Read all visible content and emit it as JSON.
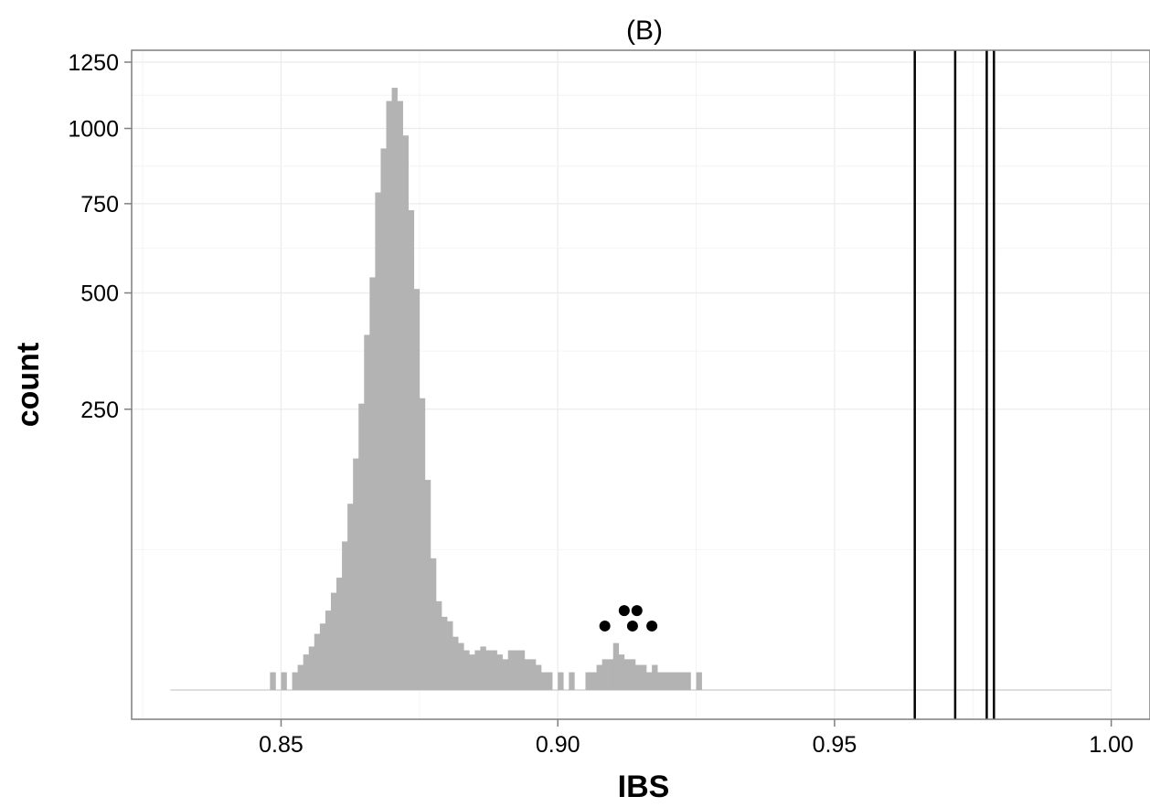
{
  "chart_data": {
    "type": "histogram",
    "title": "(B)",
    "xlabel": "IBS",
    "ylabel": "count",
    "xlim": [
      0.823,
      1.007
    ],
    "y_scale": "sqrt",
    "ylim": [
      0,
      1300
    ],
    "x_ticks": [
      0.85,
      0.9,
      0.95,
      1.0
    ],
    "x_tick_labels": [
      "0.85",
      "0.90",
      "0.95",
      "1.00"
    ],
    "y_ticks": [
      250,
      500,
      750,
      1000,
      1250
    ],
    "y_tick_labels": [
      "250",
      "500",
      "750",
      "1000",
      "1250"
    ],
    "grid": true,
    "baseline_x_range": [
      0.83,
      1.0
    ],
    "bin_width": 0.001,
    "bins": [
      {
        "x": 0.848,
        "count": 1
      },
      {
        "x": 0.85,
        "count": 1
      },
      {
        "x": 0.852,
        "count": 1
      },
      {
        "x": 0.853,
        "count": 2
      },
      {
        "x": 0.854,
        "count": 4
      },
      {
        "x": 0.855,
        "count": 6
      },
      {
        "x": 0.856,
        "count": 10
      },
      {
        "x": 0.857,
        "count": 14
      },
      {
        "x": 0.858,
        "count": 20
      },
      {
        "x": 0.859,
        "count": 30
      },
      {
        "x": 0.86,
        "count": 40
      },
      {
        "x": 0.861,
        "count": 70
      },
      {
        "x": 0.862,
        "count": 110
      },
      {
        "x": 0.863,
        "count": 170
      },
      {
        "x": 0.864,
        "count": 260
      },
      {
        "x": 0.865,
        "count": 400
      },
      {
        "x": 0.866,
        "count": 540
      },
      {
        "x": 0.867,
        "count": 785
      },
      {
        "x": 0.868,
        "count": 930
      },
      {
        "x": 0.869,
        "count": 1100
      },
      {
        "x": 0.87,
        "count": 1150
      },
      {
        "x": 0.871,
        "count": 1100
      },
      {
        "x": 0.872,
        "count": 975
      },
      {
        "x": 0.873,
        "count": 730
      },
      {
        "x": 0.874,
        "count": 510
      },
      {
        "x": 0.875,
        "count": 270
      },
      {
        "x": 0.876,
        "count": 140
      },
      {
        "x": 0.877,
        "count": 55
      },
      {
        "x": 0.878,
        "count": 25
      },
      {
        "x": 0.879,
        "count": 17
      },
      {
        "x": 0.88,
        "count": 15
      },
      {
        "x": 0.881,
        "count": 9
      },
      {
        "x": 0.882,
        "count": 7
      },
      {
        "x": 0.883,
        "count": 5
      },
      {
        "x": 0.884,
        "count": 4
      },
      {
        "x": 0.885,
        "count": 5
      },
      {
        "x": 0.886,
        "count": 6
      },
      {
        "x": 0.887,
        "count": 5
      },
      {
        "x": 0.888,
        "count": 5
      },
      {
        "x": 0.889,
        "count": 4
      },
      {
        "x": 0.89,
        "count": 3
      },
      {
        "x": 0.891,
        "count": 5
      },
      {
        "x": 0.892,
        "count": 5
      },
      {
        "x": 0.893,
        "count": 5
      },
      {
        "x": 0.894,
        "count": 3
      },
      {
        "x": 0.895,
        "count": 3
      },
      {
        "x": 0.896,
        "count": 2
      },
      {
        "x": 0.897,
        "count": 1
      },
      {
        "x": 0.898,
        "count": 1
      },
      {
        "x": 0.9,
        "count": 1
      },
      {
        "x": 0.902,
        "count": 1
      },
      {
        "x": 0.905,
        "count": 1
      },
      {
        "x": 0.906,
        "count": 1
      },
      {
        "x": 0.907,
        "count": 2
      },
      {
        "x": 0.908,
        "count": 3
      },
      {
        "x": 0.909,
        "count": 3
      },
      {
        "x": 0.91,
        "count": 7
      },
      {
        "x": 0.911,
        "count": 4
      },
      {
        "x": 0.912,
        "count": 3
      },
      {
        "x": 0.913,
        "count": 3
      },
      {
        "x": 0.914,
        "count": 2
      },
      {
        "x": 0.915,
        "count": 2
      },
      {
        "x": 0.916,
        "count": 1
      },
      {
        "x": 0.917,
        "count": 2
      },
      {
        "x": 0.918,
        "count": 1
      },
      {
        "x": 0.919,
        "count": 1
      },
      {
        "x": 0.92,
        "count": 1
      },
      {
        "x": 0.921,
        "count": 1
      },
      {
        "x": 0.922,
        "count": 1
      },
      {
        "x": 0.923,
        "count": 1
      },
      {
        "x": 0.925,
        "count": 1
      }
    ],
    "points": [
      {
        "x": 0.9085,
        "count": 13
      },
      {
        "x": 0.9135,
        "count": 13
      },
      {
        "x": 0.917,
        "count": 13
      },
      {
        "x": 0.912,
        "count": 20
      },
      {
        "x": 0.9143,
        "count": 20
      }
    ],
    "vertical_lines": [
      0.9645,
      0.9718,
      0.9775,
      0.9788
    ],
    "colors": {
      "bar_fill": "#b3b3b3",
      "point": "#000000",
      "vline": "#000000",
      "grid": "#ebebeb",
      "panel_border": "#7f7f7f",
      "baseline": "#bdbdbd"
    }
  }
}
